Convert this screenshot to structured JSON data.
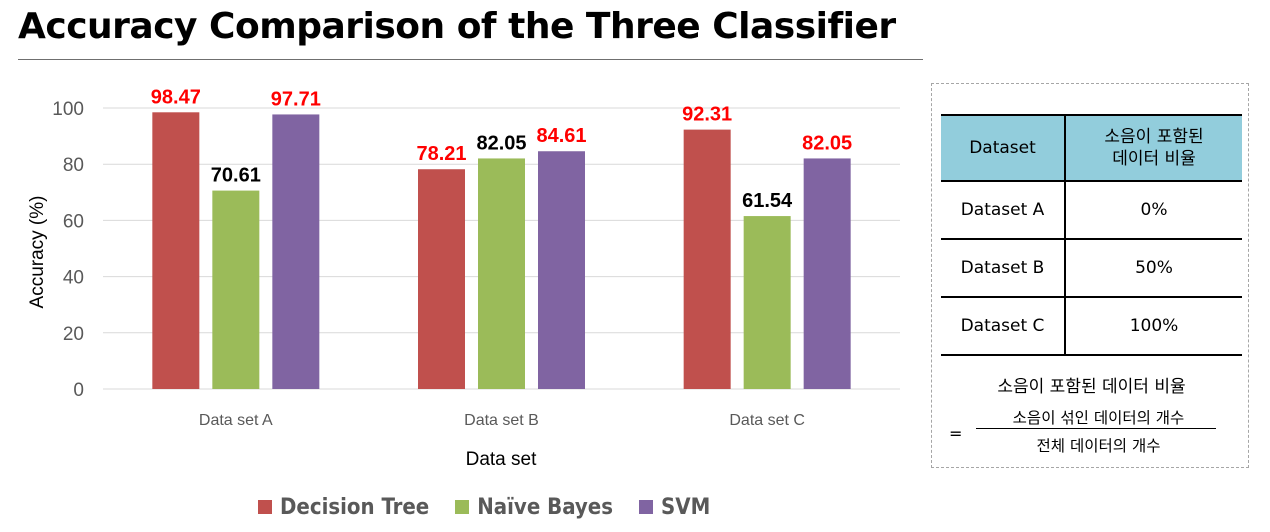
{
  "page_title": "Accuracy Comparison of the Three Classifier",
  "chart_data": {
    "type": "bar",
    "categories": [
      "Data set A",
      "Data set B",
      "Data set C"
    ],
    "series": [
      {
        "name": "Decision Tree",
        "color": "#c0504d",
        "values": [
          98.47,
          78.21,
          92.31
        ]
      },
      {
        "name": "Naïve Bayes",
        "color": "#9bbb59",
        "values": [
          70.61,
          82.05,
          61.54
        ]
      },
      {
        "name": "SVM",
        "color": "#8064a2",
        "values": [
          97.71,
          84.61,
          82.05
        ]
      }
    ],
    "data_label_colors": [
      [
        "#ff0000",
        "#000000",
        "#ff0000"
      ],
      [
        "#ff0000",
        "#000000",
        "#ff0000"
      ],
      [
        "#ff0000",
        "#000000",
        "#ff0000"
      ]
    ],
    "xlabel": "Data set",
    "ylabel": "Accuracy (%)",
    "ylim": [
      0,
      100
    ],
    "yticks": [
      0,
      20,
      40,
      60,
      80,
      100
    ],
    "grid": true,
    "legend_position": "bottom"
  },
  "noise_table": {
    "headers": [
      "Dataset",
      "소음이 포함된\n데이터 비율"
    ],
    "header_color": "#92cddc",
    "rows": [
      {
        "dataset": "Dataset A",
        "ratio": "0%"
      },
      {
        "dataset": "Dataset B",
        "ratio": "50%"
      },
      {
        "dataset": "Dataset C",
        "ratio": "100%"
      }
    ]
  },
  "formula": {
    "title": "소음이 포함된 데이터 비율",
    "equals": "=",
    "numerator": "소음이 섞인 데이터의 개수",
    "denominator": "전체 데이터의 개수"
  }
}
